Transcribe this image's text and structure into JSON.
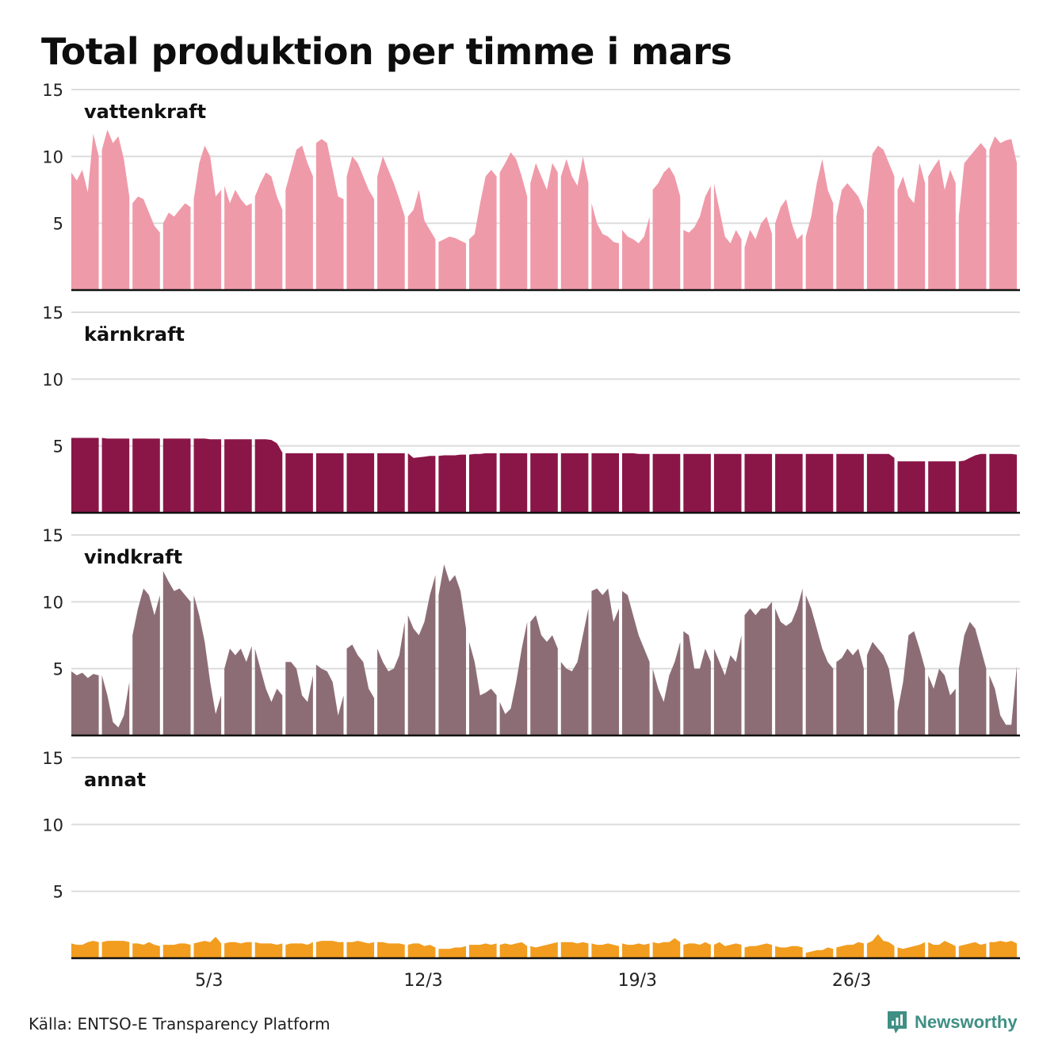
{
  "title": "Total produktion per timme i mars",
  "source": "Källa: ENTSO-E Transparency Platform",
  "brand": {
    "name": "Newsworthy",
    "icon": "newsworthy-logo-icon",
    "color": "#3f8f84"
  },
  "chart_data": {
    "type": "area",
    "x_unit": "day of March (31 days, hourly resolution)",
    "x_ticks": [
      {
        "day": 5,
        "label": "5/3"
      },
      {
        "day": 12,
        "label": "12/3"
      },
      {
        "day": 19,
        "label": "19/3"
      },
      {
        "day": 26,
        "label": "26/3"
      }
    ],
    "y_ticks": [
      5,
      10,
      15
    ],
    "ylim": [
      0,
      15
    ],
    "grid": true,
    "series": [
      {
        "name": "vattenkraft",
        "color": "#ef9aa9",
        "daily_profile": [
          [
            8.8,
            8.2,
            9.0,
            7.3,
            11.7,
            10.0
          ],
          [
            10.5,
            12.0,
            11.0,
            11.5,
            9.8,
            7.0
          ],
          [
            6.5,
            7.0,
            6.8,
            5.8,
            4.8,
            4.3
          ],
          [
            5.0,
            5.8,
            5.5,
            6.0,
            6.5,
            6.2
          ],
          [
            6.8,
            9.5,
            10.8,
            10.0,
            7.0,
            7.5
          ],
          [
            7.8,
            6.5,
            7.5,
            6.8,
            6.3,
            6.5
          ],
          [
            7.0,
            8.0,
            8.8,
            8.5,
            7.0,
            6.0
          ],
          [
            7.5,
            9.0,
            10.5,
            10.8,
            9.5,
            8.5
          ],
          [
            11.0,
            11.3,
            11.0,
            9.0,
            7.0,
            6.8
          ],
          [
            8.5,
            10.0,
            9.5,
            8.5,
            7.5,
            6.8
          ],
          [
            8.5,
            10.0,
            9.0,
            8.0,
            6.8,
            5.5
          ],
          [
            5.5,
            6.0,
            7.5,
            5.2,
            4.5,
            3.8
          ],
          [
            3.6,
            3.8,
            4.0,
            3.9,
            3.7,
            3.5
          ],
          [
            3.8,
            4.2,
            6.5,
            8.5,
            9.0,
            8.5
          ],
          [
            8.8,
            9.5,
            10.3,
            9.8,
            8.5,
            7.0
          ],
          [
            8.0,
            9.5,
            8.5,
            7.5,
            9.5,
            8.8
          ],
          [
            8.5,
            9.8,
            8.5,
            7.8,
            10.0,
            8.0
          ],
          [
            6.5,
            5.0,
            4.2,
            4.0,
            3.6,
            3.5
          ],
          [
            4.5,
            4.0,
            3.8,
            3.5,
            4.0,
            5.5
          ],
          [
            7.5,
            8.0,
            8.8,
            9.2,
            8.5,
            7.0
          ],
          [
            4.5,
            4.3,
            4.7,
            5.5,
            7.0,
            7.8
          ],
          [
            8.0,
            6.0,
            4.0,
            3.5,
            4.5,
            3.8
          ],
          [
            3.2,
            4.5,
            3.8,
            5.0,
            5.5,
            4.2
          ],
          [
            5.0,
            6.2,
            6.8,
            5.0,
            3.8,
            4.2
          ],
          [
            4.0,
            5.5,
            8.0,
            9.8,
            7.5,
            6.5
          ],
          [
            5.5,
            7.5,
            8.0,
            7.5,
            7.0,
            6.0
          ],
          [
            6.5,
            10.2,
            10.8,
            10.5,
            9.5,
            8.5
          ],
          [
            7.5,
            8.5,
            7.0,
            6.5,
            9.5,
            8.0
          ],
          [
            8.5,
            9.2,
            9.8,
            7.5,
            9.0,
            8.0
          ],
          [
            5.5,
            9.5,
            10.0,
            10.5,
            11.0,
            10.5
          ],
          [
            10.5,
            11.5,
            11.0,
            11.2,
            11.3,
            9.5
          ]
        ]
      },
      {
        "name": "kärnkraft",
        "color": "#8a1648",
        "daily_profile": [
          [
            5.6,
            5.6,
            5.6,
            5.6,
            5.6,
            5.6
          ],
          [
            5.6,
            5.55,
            5.55,
            5.55,
            5.55,
            5.55
          ],
          [
            5.55,
            5.55,
            5.55,
            5.55,
            5.55,
            5.55
          ],
          [
            5.55,
            5.55,
            5.55,
            5.55,
            5.55,
            5.55
          ],
          [
            5.55,
            5.55,
            5.55,
            5.5,
            5.5,
            5.5
          ],
          [
            5.5,
            5.5,
            5.5,
            5.5,
            5.5,
            5.5
          ],
          [
            5.5,
            5.5,
            5.5,
            5.45,
            5.2,
            4.5
          ],
          [
            4.45,
            4.45,
            4.45,
            4.45,
            4.45,
            4.45
          ],
          [
            4.45,
            4.45,
            4.45,
            4.45,
            4.45,
            4.45
          ],
          [
            4.45,
            4.45,
            4.45,
            4.45,
            4.45,
            4.45
          ],
          [
            4.45,
            4.45,
            4.45,
            4.45,
            4.45,
            4.45
          ],
          [
            4.45,
            4.1,
            4.15,
            4.2,
            4.25,
            4.25
          ],
          [
            4.25,
            4.3,
            4.3,
            4.3,
            4.35,
            4.35
          ],
          [
            4.35,
            4.4,
            4.4,
            4.45,
            4.45,
            4.45
          ],
          [
            4.45,
            4.45,
            4.45,
            4.45,
            4.45,
            4.45
          ],
          [
            4.45,
            4.45,
            4.45,
            4.45,
            4.45,
            4.45
          ],
          [
            4.45,
            4.45,
            4.45,
            4.45,
            4.45,
            4.45
          ],
          [
            4.45,
            4.45,
            4.45,
            4.45,
            4.45,
            4.45
          ],
          [
            4.45,
            4.45,
            4.45,
            4.4,
            4.4,
            4.4
          ],
          [
            4.4,
            4.4,
            4.4,
            4.4,
            4.4,
            4.4
          ],
          [
            4.4,
            4.4,
            4.4,
            4.4,
            4.4,
            4.4
          ],
          [
            4.4,
            4.4,
            4.4,
            4.4,
            4.4,
            4.4
          ],
          [
            4.4,
            4.4,
            4.4,
            4.4,
            4.4,
            4.4
          ],
          [
            4.4,
            4.4,
            4.4,
            4.4,
            4.4,
            4.4
          ],
          [
            4.4,
            4.4,
            4.4,
            4.4,
            4.4,
            4.4
          ],
          [
            4.4,
            4.4,
            4.4,
            4.4,
            4.4,
            4.4
          ],
          [
            4.4,
            4.4,
            4.4,
            4.4,
            4.4,
            4.1
          ],
          [
            3.85,
            3.85,
            3.85,
            3.85,
            3.85,
            3.85
          ],
          [
            3.85,
            3.85,
            3.85,
            3.85,
            3.85,
            3.85
          ],
          [
            3.85,
            3.9,
            4.1,
            4.3,
            4.4,
            4.4
          ],
          [
            4.4,
            4.4,
            4.4,
            4.4,
            4.4,
            4.35
          ]
        ]
      },
      {
        "name": "vindkraft",
        "color": "#8c6d76",
        "daily_profile": [
          [
            4.8,
            4.5,
            4.7,
            4.3,
            4.6,
            4.5
          ],
          [
            4.5,
            3.0,
            1.0,
            0.6,
            1.5,
            4.0
          ],
          [
            7.5,
            9.5,
            11.0,
            10.5,
            9.0,
            10.5
          ],
          [
            12.3,
            11.5,
            10.8,
            11.0,
            10.5,
            10.0
          ],
          [
            10.5,
            9.0,
            7.0,
            4.0,
            1.6,
            3.0
          ],
          [
            5.0,
            6.5,
            6.0,
            6.5,
            5.5,
            6.7
          ],
          [
            6.5,
            5.0,
            3.5,
            2.5,
            3.5,
            3.0
          ],
          [
            5.5,
            5.5,
            5.0,
            3.0,
            2.5,
            4.5
          ],
          [
            5.3,
            5.0,
            4.8,
            4.0,
            1.5,
            3.0
          ],
          [
            6.5,
            6.8,
            6.0,
            5.5,
            3.5,
            2.8
          ],
          [
            6.5,
            5.5,
            4.8,
            5.0,
            6.0,
            8.5
          ],
          [
            9.0,
            8.0,
            7.5,
            8.5,
            10.5,
            12.0
          ],
          [
            10.5,
            12.8,
            11.5,
            12.0,
            10.8,
            8.0
          ],
          [
            7.0,
            5.5,
            3.0,
            3.2,
            3.5,
            3.0
          ],
          [
            2.5,
            1.6,
            2.0,
            4.0,
            6.5,
            8.5
          ],
          [
            8.5,
            9.0,
            7.5,
            7.0,
            7.5,
            6.5
          ],
          [
            5.5,
            5.0,
            4.8,
            5.5,
            7.5,
            9.5
          ],
          [
            10.8,
            11.0,
            10.5,
            11.0,
            8.5,
            9.5
          ],
          [
            10.8,
            10.5,
            9.0,
            7.5,
            6.5,
            5.5
          ],
          [
            5.0,
            3.5,
            2.5,
            4.5,
            5.5,
            7.0
          ],
          [
            7.8,
            7.5,
            5.0,
            5.0,
            6.5,
            5.5
          ],
          [
            6.5,
            5.5,
            4.5,
            6.0,
            5.5,
            7.5
          ],
          [
            9.0,
            9.5,
            9.0,
            9.5,
            9.5,
            10.0
          ],
          [
            9.5,
            8.5,
            8.2,
            8.5,
            9.5,
            11.0
          ],
          [
            10.5,
            9.5,
            8.0,
            6.5,
            5.5,
            5.0
          ],
          [
            5.5,
            5.8,
            6.5,
            6.0,
            6.5,
            5.0
          ],
          [
            6.0,
            7.0,
            6.5,
            6.0,
            5.0,
            2.5
          ],
          [
            1.8,
            4.0,
            7.5,
            7.8,
            6.5,
            5.0
          ],
          [
            4.5,
            3.5,
            5.0,
            4.5,
            3.0,
            3.5
          ],
          [
            5.0,
            7.5,
            8.5,
            8.0,
            6.5,
            5.0
          ],
          [
            4.5,
            3.5,
            1.5,
            0.8,
            0.8,
            5.2
          ]
        ]
      },
      {
        "name": "annat",
        "color": "#f29d1f",
        "daily_profile": [
          [
            1.1,
            1.0,
            1.0,
            1.2,
            1.3,
            1.2
          ],
          [
            1.2,
            1.3,
            1.3,
            1.3,
            1.3,
            1.2
          ],
          [
            1.1,
            1.1,
            1.0,
            1.2,
            1.0,
            0.9
          ],
          [
            1.0,
            1.0,
            1.0,
            1.1,
            1.1,
            1.0
          ],
          [
            1.1,
            1.2,
            1.3,
            1.2,
            1.6,
            1.1
          ],
          [
            1.1,
            1.2,
            1.2,
            1.1,
            1.2,
            1.2
          ],
          [
            1.2,
            1.1,
            1.1,
            1.1,
            1.0,
            1.1
          ],
          [
            1.0,
            1.1,
            1.1,
            1.1,
            1.0,
            1.2
          ],
          [
            1.2,
            1.3,
            1.3,
            1.3,
            1.2,
            1.2
          ],
          [
            1.2,
            1.2,
            1.3,
            1.2,
            1.1,
            1.2
          ],
          [
            1.2,
            1.2,
            1.1,
            1.1,
            1.1,
            1.0
          ],
          [
            1.0,
            1.1,
            1.1,
            0.9,
            1.0,
            0.8
          ],
          [
            0.7,
            0.7,
            0.7,
            0.8,
            0.8,
            0.9
          ],
          [
            1.0,
            1.0,
            1.0,
            1.1,
            1.0,
            1.1
          ],
          [
            1.0,
            1.1,
            1.0,
            1.1,
            1.2,
            0.9
          ],
          [
            0.9,
            0.8,
            0.9,
            1.0,
            1.1,
            1.2
          ],
          [
            1.2,
            1.2,
            1.2,
            1.1,
            1.2,
            1.1
          ],
          [
            1.1,
            1.0,
            1.0,
            1.1,
            1.0,
            0.9
          ],
          [
            1.1,
            1.0,
            1.0,
            1.1,
            1.0,
            1.1
          ],
          [
            1.2,
            1.1,
            1.2,
            1.2,
            1.5,
            1.2
          ],
          [
            1.0,
            1.1,
            1.1,
            1.0,
            1.2,
            1.0
          ],
          [
            1.0,
            1.2,
            0.9,
            1.0,
            1.1,
            1.0
          ],
          [
            0.8,
            0.9,
            0.9,
            1.0,
            1.1,
            1.0
          ],
          [
            0.9,
            0.8,
            0.8,
            0.9,
            0.9,
            0.8
          ],
          [
            0.4,
            0.5,
            0.6,
            0.6,
            0.8,
            0.7
          ],
          [
            0.8,
            0.9,
            1.0,
            1.0,
            1.2,
            1.1
          ],
          [
            1.1,
            1.3,
            1.8,
            1.3,
            1.2,
            0.9
          ],
          [
            0.8,
            0.7,
            0.8,
            0.9,
            1.0,
            1.2
          ],
          [
            1.2,
            1.0,
            1.0,
            1.3,
            1.1,
            0.9
          ],
          [
            0.9,
            1.0,
            1.1,
            1.2,
            1.0,
            1.1
          ],
          [
            1.2,
            1.2,
            1.3,
            1.2,
            1.3,
            1.1
          ]
        ]
      }
    ]
  }
}
